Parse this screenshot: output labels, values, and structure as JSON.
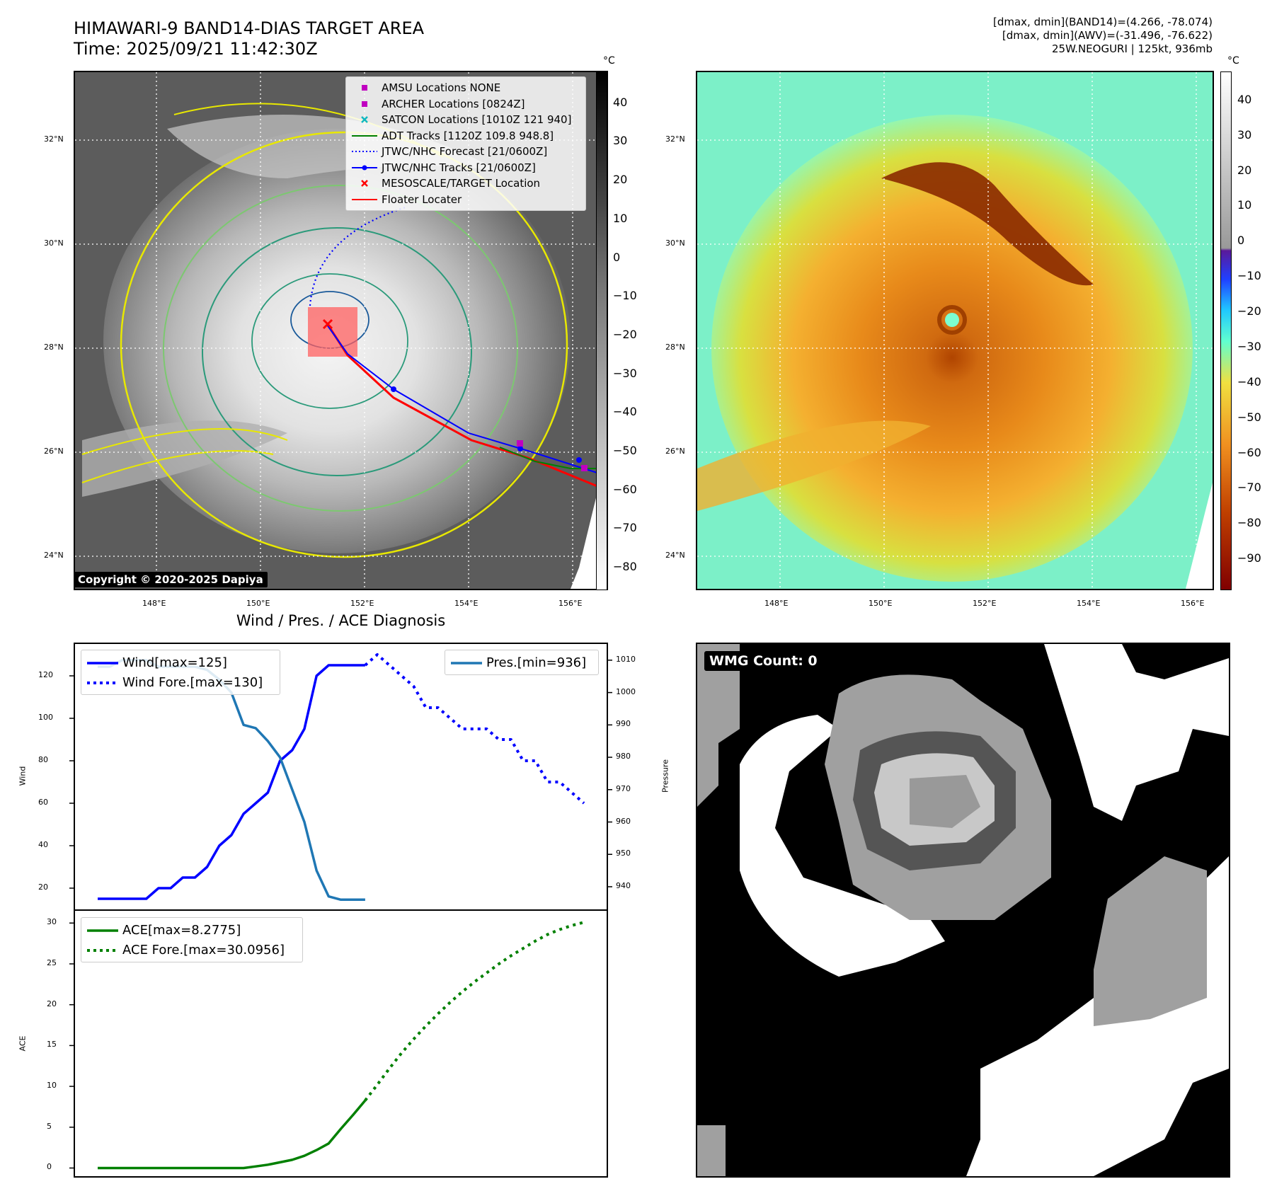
{
  "header": {
    "title_line1": "HIMAWARI-9 BAND14-DIAS TARGET AREA",
    "title_line2": "Time: 2025/09/21 11:42:30Z",
    "right_line1": "[dmax, dmin](BAND14)=(4.266, -78.074)",
    "right_line2": "[dmax, dmin](AWV)=(-31.496, -76.622)",
    "right_line3": "25W.NEOGURI | 125kt, 936mb"
  },
  "map": {
    "lat_labels": [
      "32°N",
      "30°N",
      "28°N",
      "26°N",
      "24°N"
    ],
    "lon_labels": [
      "148°E",
      "150°E",
      "152°E",
      "154°E",
      "156°E"
    ],
    "copyright": "Copyright © 2020-2025 Dapiya",
    "legend": [
      {
        "label": "AMSU Locations NONE",
        "color": "#c000c0",
        "symbol": "square"
      },
      {
        "label": "ARCHER Locations [0824Z]",
        "color": "#c000c0",
        "symbol": "square"
      },
      {
        "label": "SATCON Locations [1010Z 121 940]",
        "color": "#10b8c0",
        "symbol": "x"
      },
      {
        "label": "ADT Tracks [1120Z 109.8 948.8]",
        "color": "#008000",
        "symbol": "line"
      },
      {
        "label": "JTWC/NHC Forecast [21/0600Z]",
        "color": "#0000ff",
        "symbol": "dotted"
      },
      {
        "label": "JTWC/NHC Tracks [21/0600Z]",
        "color": "#0000ff",
        "symbol": "line-dot"
      },
      {
        "label": "MESOSCALE/TARGET Location",
        "color": "#ff0000",
        "symbol": "x"
      },
      {
        "label": "Floater Locater",
        "color": "#ff0000",
        "symbol": "line"
      }
    ]
  },
  "colorbar_left": {
    "unit": "°C",
    "ticks": [
      "40",
      "30",
      "20",
      "10",
      "0",
      "−10",
      "−20",
      "−30",
      "−40",
      "−50",
      "−60",
      "−70",
      "−80"
    ]
  },
  "colorbar_right": {
    "unit": "°C",
    "ticks": [
      "40",
      "30",
      "20",
      "10",
      "0",
      "−10",
      "−20",
      "−30",
      "−40",
      "−50",
      "−60",
      "−70",
      "−80",
      "−90"
    ]
  },
  "diagnosis": {
    "title": "Wind / Pres. / ACE Diagnosis",
    "wind_ylabel": "Wind",
    "pres_ylabel": "Pressure",
    "ace_ylabel": "ACE",
    "wind_ticks": [
      "120",
      "100",
      "80",
      "60",
      "40",
      "20"
    ],
    "pres_ticks": [
      "1010",
      "1000",
      "990",
      "980",
      "970",
      "960",
      "950",
      "940"
    ],
    "ace_ticks": [
      "30",
      "25",
      "20",
      "15",
      "10",
      "5",
      "0"
    ],
    "legend_wind": "Wind[max=125]",
    "legend_wind_fore": "Wind Fore.[max=130]",
    "legend_pres": "Pres.[min=936]",
    "legend_ace": "ACE[max=8.2775]",
    "legend_ace_fore": "ACE Fore.[max=30.0956]",
    "colors": {
      "wind": "#0000ff",
      "pres": "#1f77b4",
      "ace": "#008000"
    }
  },
  "wmg": {
    "label": "WMG Count: 0"
  },
  "chart_data": {
    "type": "line",
    "series": [
      {
        "name": "Wind[max=125]",
        "axis": "wind",
        "style": "solid",
        "x": [
          0,
          1,
          2,
          3,
          4,
          5,
          6,
          7,
          8,
          9,
          10,
          11,
          12,
          13,
          14,
          15,
          16,
          17,
          18,
          19,
          20,
          21,
          22
        ],
        "y": [
          15,
          15,
          15,
          15,
          15,
          20,
          20,
          25,
          25,
          30,
          40,
          45,
          55,
          60,
          65,
          80,
          85,
          95,
          120,
          125,
          125,
          125,
          125
        ]
      },
      {
        "name": "Wind Fore.[max=130]",
        "axis": "wind",
        "style": "dotted",
        "x": [
          22,
          23,
          24,
          25,
          26,
          27,
          28,
          29,
          30,
          31,
          32,
          33,
          34,
          35,
          36,
          37,
          38,
          39,
          40
        ],
        "y": [
          125,
          130,
          125,
          120,
          115,
          105,
          105,
          100,
          95,
          95,
          95,
          90,
          90,
          80,
          80,
          70,
          70,
          65,
          60
        ]
      },
      {
        "name": "Pres.[min=936]",
        "axis": "pres",
        "style": "solid",
        "x": [
          0,
          1,
          2,
          3,
          4,
          5,
          6,
          7,
          8,
          9,
          10,
          11,
          12,
          13,
          14,
          15,
          16,
          17,
          18,
          19,
          20,
          21,
          22
        ],
        "y": [
          1008,
          1008,
          1010,
          1010,
          1010,
          1008,
          1008,
          1008,
          1008,
          1007,
          1004,
          1000,
          990,
          989,
          985,
          980,
          970,
          960,
          945,
          937,
          936,
          936,
          936
        ]
      },
      {
        "name": "ACE[max=8.2775]",
        "axis": "ace",
        "style": "solid",
        "x": [
          0,
          2,
          4,
          6,
          8,
          9,
          10,
          11,
          12,
          13,
          14,
          15,
          16,
          17,
          18,
          19,
          20,
          21,
          22
        ],
        "y": [
          0,
          0,
          0,
          0,
          0,
          0,
          0,
          0,
          0,
          0.2,
          0.4,
          0.7,
          1.0,
          1.5,
          2.2,
          3.0,
          4.8,
          6.5,
          8.2775
        ]
      },
      {
        "name": "ACE Fore.[max=30.0956]",
        "axis": "ace",
        "style": "dotted",
        "x": [
          22,
          23,
          24,
          25,
          26,
          27,
          28,
          29,
          30,
          31,
          32,
          33,
          34,
          35,
          36,
          37,
          38,
          39,
          40
        ],
        "y": [
          8.2775,
          10.2,
          12.2,
          14.1,
          15.8,
          17.4,
          18.9,
          20.3,
          21.6,
          22.8,
          23.9,
          25.0,
          26.0,
          26.9,
          27.8,
          28.6,
          29.2,
          29.7,
          30.0956
        ]
      }
    ],
    "wind_range": [
      10,
      135
    ],
    "pres_range": [
      933,
      1015
    ],
    "ace_range": [
      -1,
      31.5
    ]
  }
}
